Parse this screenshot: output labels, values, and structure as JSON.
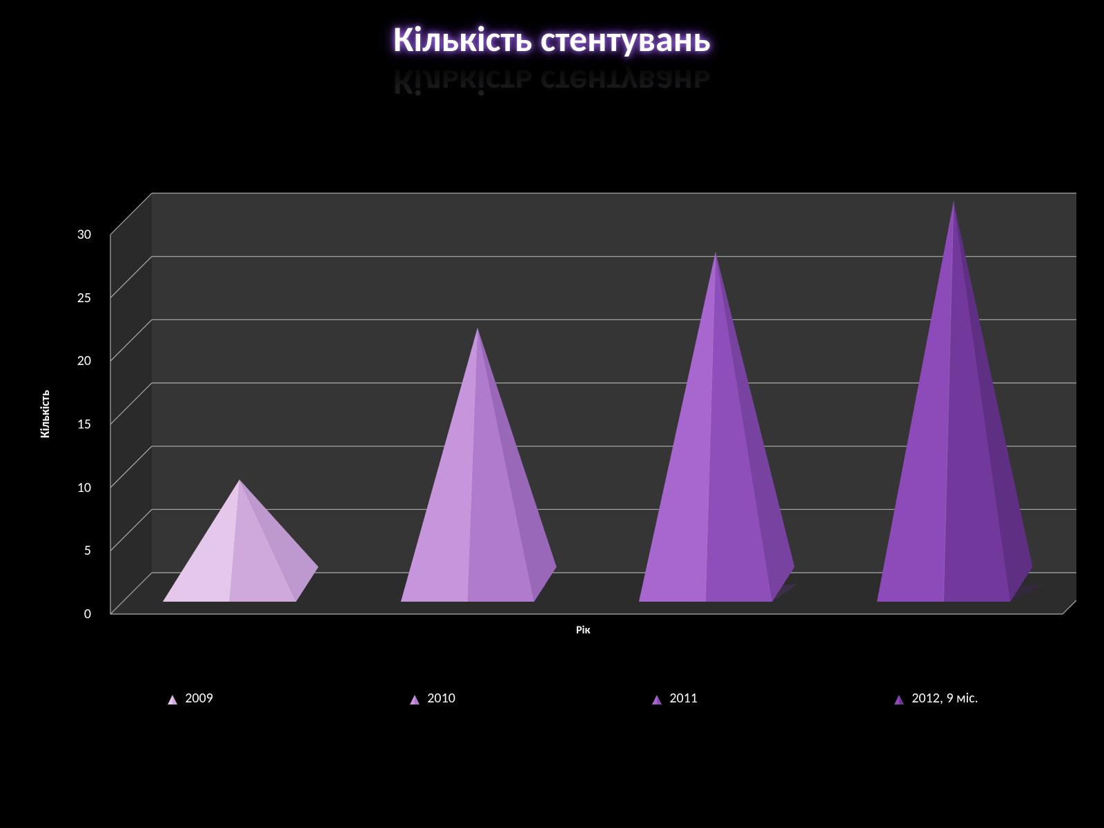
{
  "chart": {
    "type": "pyramid-3d",
    "title": "Кількість стентувань",
    "title_fontsize": 52,
    "title_color": "#ffffff",
    "title_glow_color": "#a060e0",
    "background_color": "#000000",
    "plot_floor_color": "#2c2c2c",
    "plot_backwall_color": "#353535",
    "plot_sidewall_color": "#2a2a2a",
    "gridline_color": "#aeaeae",
    "ylabel": "Кількість",
    "xlabel": "Рік",
    "label_fontsize": 18,
    "label_color": "#ffffff",
    "tick_fontsize": 20,
    "tick_color": "#ffffff",
    "ylim": [
      0,
      30
    ],
    "ytick_step": 5,
    "yticks": [
      0,
      5,
      10,
      15,
      20,
      25,
      30
    ],
    "depth_offset_x": 60,
    "depth_offset_y": 60,
    "series": [
      {
        "label": "2009",
        "value": 9,
        "colors": {
          "front_light": "#e4c7ea",
          "front_dark": "#cfa9dc",
          "side": "#bd99cf",
          "shadow": "#6b5777"
        }
      },
      {
        "label": "2010",
        "value": 21,
        "colors": {
          "front_light": "#c695dc",
          "front_dark": "#b07acd",
          "side": "#9a68b9",
          "shadow": "#5c4570"
        }
      },
      {
        "label": "2011",
        "value": 27,
        "colors": {
          "front_light": "#a866cf",
          "front_dark": "#8e4fba",
          "side": "#7843a0",
          "shadow": "#4c335f"
        }
      },
      {
        "label": "2012, 9 міс.",
        "value": 31,
        "colors": {
          "front_light": "#8d4bb9",
          "front_dark": "#72389c",
          "side": "#5e2f82",
          "shadow": "#3d274f"
        }
      }
    ],
    "legend": {
      "position": "bottom",
      "fontsize": 20,
      "color": "#ffffff"
    }
  }
}
